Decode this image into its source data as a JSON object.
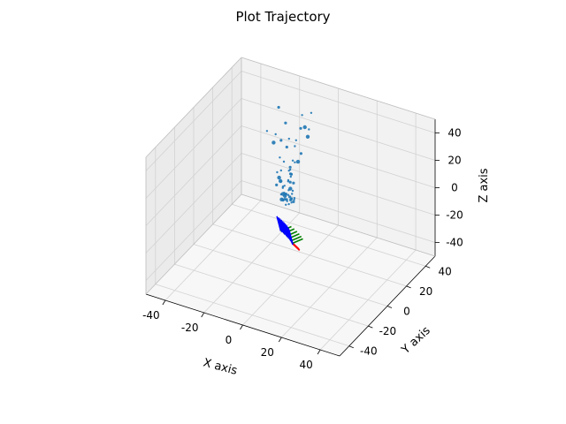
{
  "chart_data": {
    "type": "scatter",
    "title": "Plot Trajectory",
    "xlabel": "X axis",
    "ylabel": "Y axis",
    "zlabel": "Z axis",
    "xlim": [
      -50,
      50
    ],
    "ylim": [
      -50,
      50
    ],
    "zlim": [
      -50,
      50
    ],
    "x_ticks": [
      -40,
      -20,
      0,
      20,
      40
    ],
    "y_ticks": [
      -40,
      -20,
      0,
      20,
      40
    ],
    "z_ticks": [
      -40,
      -20,
      0,
      20,
      40
    ],
    "grid": true,
    "point_color": "#1f77b4",
    "pose_colors": {
      "x": "#ff0000",
      "y": "#008000",
      "z": "#0000ff"
    },
    "points": [
      [
        -5.71,
        -6.11,
        48.69
      ],
      [
        -11.27,
        7.31,
        42.47
      ],
      [
        -17.12,
        10.12,
        40.16
      ],
      [
        -11.11,
        17.37,
        43.51
      ],
      [
        -5.45,
        23.22,
        47.54
      ],
      [
        -1.47,
        8.84,
        41.43
      ],
      [
        -18.53,
        25.15,
        45.88
      ],
      [
        -2.07,
        19.18,
        43.13
      ],
      [
        -1.61,
        22.5,
        39.3
      ],
      [
        -6.01,
        22.84,
        37.85
      ],
      [
        -4.82,
        31.44,
        43.41
      ],
      [
        -3.59,
        11.84,
        33.95
      ],
      [
        -12.57,
        15.56,
        31.4
      ],
      [
        -9.63,
        17.91,
        32.18
      ],
      [
        -3.2,
        24.55,
        31.73
      ],
      [
        -9.75,
        15.85,
        27.57
      ],
      [
        -10.96,
        11.01,
        22.94
      ],
      [
        -4.98,
        12.52,
        22.3
      ],
      [
        -1.24,
        13.51,
        28.43
      ],
      [
        -4.3,
        13.26,
        20.76
      ],
      [
        -4.23,
        8.23,
        19.12
      ],
      [
        -3.46,
        14.86,
        20.45
      ],
      [
        -10.23,
        13.8,
        18.21
      ],
      [
        -8.07,
        6.45,
        18.11
      ],
      [
        -3.96,
        8.96,
        15.37
      ],
      [
        -11.04,
        8.39,
        14.06
      ],
      [
        -3.25,
        6.89,
        15.43
      ],
      [
        -5.26,
        10.33,
        18.93
      ],
      [
        -6.49,
        2.74,
        13.75
      ],
      [
        -6.16,
        10.85,
        15.62
      ],
      [
        -6.23,
        12.59,
        12.02
      ],
      [
        -4.09,
        6.02,
        13.14
      ],
      [
        -3.57,
        4.74,
        13.45
      ],
      [
        -2.42,
        4.59,
        13.49
      ],
      [
        -6.8,
        3.75,
        12.49
      ],
      [
        -10.32,
        8.94,
        10.06
      ],
      [
        -10.45,
        6.6,
        6.35
      ],
      [
        -4.89,
        3.6,
        10.46
      ],
      [
        -1.66,
        4.93,
        4.98
      ],
      [
        -3.91,
        11.1,
        7.42
      ],
      [
        -4.11,
        6.4,
        5.53
      ],
      [
        -4.07,
        3.06,
        5.35
      ],
      [
        -2.9,
        5.74,
        7.66
      ],
      [
        -6.42,
        4.98,
        7.21
      ],
      [
        -8.34,
        8.93,
        4.43
      ],
      [
        -2.98,
        1.33,
        6.91
      ],
      [
        -5.7,
        4.87,
        4.05
      ],
      [
        -3.46,
        9.33,
        3.25
      ],
      [
        -2.78,
        4.78,
        2.45
      ],
      [
        -4.43,
        3.12,
        3.59
      ],
      [
        -5.41,
        2.75,
        0.87
      ],
      [
        -3.48,
        2.99,
        1.51
      ],
      [
        -1.18,
        6.5,
        1.06
      ],
      [
        -5.02,
        7.87,
        0.56
      ],
      [
        -2.35,
        5.53,
        0.45
      ],
      [
        -7.46,
        5.33,
        1.72
      ],
      [
        -6.29,
        3.53,
        -0.11
      ],
      [
        -0.25,
        3.64,
        0.82
      ],
      [
        -2.32,
        2.93,
        -1.3
      ],
      [
        -4.18,
        4.96,
        -1.41
      ],
      [
        -5.5,
        5.14,
        -0.78
      ],
      [
        -1.46,
        3.98,
        -0.56
      ],
      [
        -3.3,
        7.91,
        -1.05
      ],
      [
        -7.6,
        7.47,
        0.41
      ],
      [
        -3.14,
        1.48,
        -1.1
      ],
      [
        -5.39,
        3.22,
        -0.36
      ],
      [
        -2.57,
        5.32,
        -0.12
      ],
      [
        -1.1,
        6.07,
        0.27
      ]
    ],
    "trajectory_poses": [
      [
        -6.0,
        2.0,
        -22.0
      ],
      [
        -5.5,
        2.5,
        -23.0
      ],
      [
        -5.0,
        3.0,
        -24.0
      ],
      [
        -4.5,
        3.4,
        -25.0
      ],
      [
        -4.0,
        3.8,
        -26.0
      ],
      [
        -3.6,
        4.2,
        -27.0
      ],
      [
        -3.2,
        4.6,
        -28.0
      ],
      [
        -2.8,
        5.0,
        -29.0
      ],
      [
        -2.5,
        5.3,
        -30.0
      ],
      [
        -2.2,
        5.6,
        -31.0
      ],
      [
        -2.0,
        5.9,
        -32.0
      ],
      [
        -1.8,
        6.1,
        -33.0
      ]
    ]
  }
}
